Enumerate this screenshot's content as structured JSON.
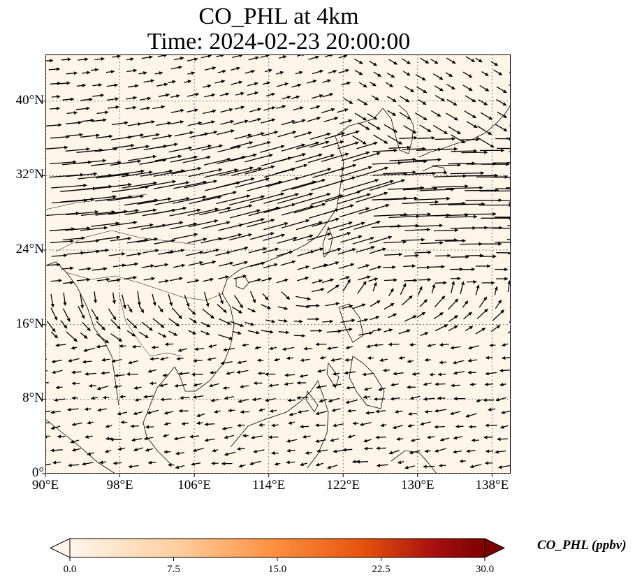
{
  "title": "CO_PHL at 4km",
  "subtitle": "Time: 2024-02-23 20:00:00",
  "map": {
    "lon_range": [
      90,
      140
    ],
    "lat_range": [
      0,
      45
    ],
    "lon_ticks": [
      "90°E",
      "98°E",
      "106°E",
      "114°E",
      "122°E",
      "130°E",
      "138°E"
    ],
    "lat_ticks": [
      "0°",
      "8°N",
      "16°N",
      "24°N",
      "32°N",
      "40°N"
    ],
    "gridlines": "dotted",
    "background_color": "#fff5e9",
    "vector_color": "#000000",
    "coastline_color": "#000000"
  },
  "colorbar": {
    "label": "CO_PHL (ppbv)",
    "ticks": [
      "0.0",
      "7.5",
      "15.0",
      "22.5",
      "30.0"
    ],
    "range": [
      0,
      30
    ],
    "extend": "both",
    "colors": [
      "#fff5eb",
      "#fdd0a2",
      "#fd8d3c",
      "#e6550d",
      "#a60f0f",
      "#7f0000"
    ]
  }
}
